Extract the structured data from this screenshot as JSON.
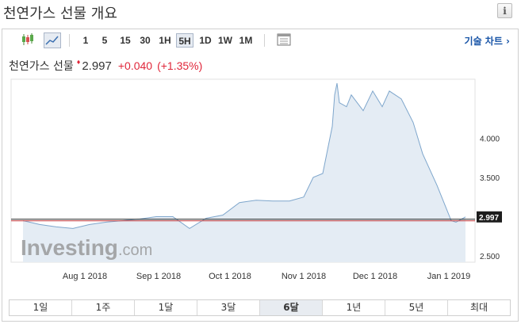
{
  "page": {
    "title": "천연가스 선물 개요",
    "info_label": "i"
  },
  "toolbar": {
    "intervals": [
      "1",
      "5",
      "15",
      "30",
      "1H",
      "5H",
      "1D",
      "1W",
      "1M"
    ],
    "selected_interval": "5H",
    "tech_chart_label": "기술 차트 ›"
  },
  "quote": {
    "name": "천연가스 선물",
    "arrow": "♦",
    "price": "2.997",
    "change": "+0.040",
    "change_pct": "(+1.35%)"
  },
  "watermark": {
    "brand": "Investing",
    "suffix": ".com"
  },
  "colors": {
    "area_fill": "#e4ecf4",
    "line": "#7ea6cc",
    "up": "#e0263a",
    "ref_line_dark": "#222222",
    "ref_line_red": "#c8393a",
    "link": "#1a56a8"
  },
  "tabs": [
    "1일",
    "1주",
    "1달",
    "3달",
    "6달",
    "1년",
    "5년",
    "최대"
  ],
  "selected_tab": "6달",
  "chart_data": {
    "type": "area",
    "x_ticks": [
      "Aug 1 2018",
      "Sep 1 2018",
      "Oct 1 2018",
      "Nov 1 2018",
      "Dec 1 2018",
      "Jan 1 2019"
    ],
    "y_ticks": [
      "4.000",
      "3.500",
      "2.500"
    ],
    "ylim": [
      2.42,
      4.75
    ],
    "last_value": 2.997,
    "last_label": "2.997",
    "reference_value": 2.957,
    "x": [
      "2018-07-06",
      "2018-07-13",
      "2018-07-20",
      "2018-07-27",
      "2018-08-03",
      "2018-08-10",
      "2018-08-17",
      "2018-08-24",
      "2018-08-31",
      "2018-09-07",
      "2018-09-14",
      "2018-09-21",
      "2018-09-28",
      "2018-10-05",
      "2018-10-12",
      "2018-10-19",
      "2018-10-26",
      "2018-11-01",
      "2018-11-05",
      "2018-11-09",
      "2018-11-13",
      "2018-11-14",
      "2018-11-15",
      "2018-11-16",
      "2018-11-19",
      "2018-11-21",
      "2018-11-26",
      "2018-11-30",
      "2018-12-04",
      "2018-12-07",
      "2018-12-12",
      "2018-12-17",
      "2018-12-21",
      "2018-12-27",
      "2019-01-02",
      "2019-01-04",
      "2019-01-08"
    ],
    "values": [
      2.95,
      2.9,
      2.87,
      2.85,
      2.9,
      2.93,
      2.95,
      2.97,
      3.0,
      3.0,
      2.85,
      2.98,
      3.02,
      3.18,
      3.21,
      3.2,
      3.2,
      3.25,
      3.5,
      3.55,
      4.15,
      4.55,
      4.7,
      4.45,
      4.4,
      4.55,
      4.35,
      4.6,
      4.4,
      4.6,
      4.5,
      4.2,
      3.8,
      3.4,
      2.95,
      2.93,
      2.997
    ]
  }
}
